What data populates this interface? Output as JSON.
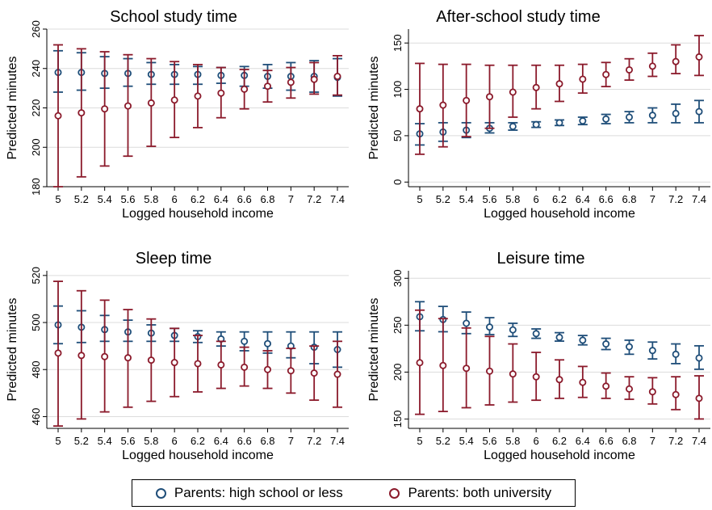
{
  "colors": {
    "series1": "#1f4e79",
    "series2": "#8b1a2b",
    "grid": "#dcdcdc"
  },
  "legend": {
    "items": [
      {
        "label": "Parents: high school or less",
        "color": "#1f4e79"
      },
      {
        "label": "Parents: both university",
        "color": "#8b1a2b"
      }
    ]
  },
  "chart_data": [
    {
      "type": "scatter",
      "title": "School study time",
      "xlabel": "Logged household income",
      "ylabel": "Predicted minutes",
      "x": [
        "5",
        "5.2",
        "5.4",
        "5.6",
        "5.8",
        "6",
        "6.2",
        "6.4",
        "6.6",
        "6.8",
        "7",
        "7.2",
        "7.4"
      ],
      "ylim": [
        180,
        260
      ],
      "yticks": [
        180,
        200,
        220,
        240,
        260
      ],
      "series": [
        {
          "name": "Parents: high school or less",
          "values": [
            238,
            238,
            237.5,
            237.5,
            237,
            237,
            237,
            236.5,
            236.5,
            236,
            236,
            236,
            235.5
          ],
          "lower": [
            228,
            229,
            230,
            231,
            232,
            232,
            232,
            232.5,
            231,
            230,
            229,
            228,
            226
          ],
          "upper": [
            249,
            248,
            246,
            245,
            243,
            242,
            241,
            240.5,
            241,
            242,
            243,
            244,
            245
          ]
        },
        {
          "name": "Parents: both university",
          "values": [
            216,
            217.5,
            219.5,
            221,
            222.5,
            224,
            226,
            227.5,
            229.5,
            231,
            233,
            234.5,
            236
          ],
          "lower": [
            180,
            185,
            190.5,
            195.5,
            200.5,
            205,
            210,
            215,
            219.5,
            223,
            225,
            227,
            226.5
          ],
          "upper": [
            252,
            250,
            248.5,
            247,
            245,
            243.5,
            242,
            240.5,
            239.5,
            239,
            240.5,
            243,
            246.5
          ]
        }
      ]
    },
    {
      "type": "scatter",
      "title": "After-school study time",
      "xlabel": "Logged household income",
      "ylabel": "Predicted minutes",
      "x": [
        "5",
        "5.2",
        "5.4",
        "5.6",
        "5.8",
        "6",
        "6.2",
        "6.4",
        "6.6",
        "6.8",
        "7",
        "7.2",
        "7.4"
      ],
      "ylim": [
        -5,
        165
      ],
      "yticks": [
        0,
        50,
        100,
        150
      ],
      "series": [
        {
          "name": "Parents: high school or less",
          "values": [
            52,
            54,
            56,
            58,
            60,
            62,
            64,
            66,
            68,
            70,
            72,
            74,
            76
          ],
          "lower": [
            40,
            44,
            48,
            53,
            56,
            59,
            61,
            62,
            63,
            64,
            64,
            64,
            64
          ],
          "upper": [
            63,
            64,
            64,
            64,
            64,
            65,
            67,
            70,
            73,
            76,
            80,
            84,
            88
          ]
        },
        {
          "name": "Parents: both university",
          "values": [
            79,
            83,
            88,
            92,
            97,
            102,
            106,
            111,
            116,
            121,
            125,
            130,
            135
          ],
          "lower": [
            30,
            38,
            49,
            58,
            70,
            79,
            87,
            96,
            103,
            110,
            114,
            117,
            115
          ],
          "upper": [
            128,
            127,
            127,
            126,
            126,
            126,
            126,
            127,
            129,
            133,
            139,
            148,
            158
          ]
        }
      ]
    },
    {
      "type": "scatter",
      "title": "Sleep time",
      "xlabel": "Logged household income",
      "ylabel": "Predicted minutes",
      "x": [
        "5",
        "5.2",
        "5.4",
        "5.6",
        "5.8",
        "6",
        "6.2",
        "6.4",
        "6.6",
        "6.8",
        "7",
        "7.2",
        "7.4"
      ],
      "ylim": [
        455,
        522
      ],
      "yticks": [
        460,
        480,
        500,
        520
      ],
      "series": [
        {
          "name": "Parents: high school or less",
          "values": [
            499,
            498,
            497,
            496,
            495.5,
            494.5,
            494,
            493,
            492,
            491,
            490,
            489.5,
            488.5
          ],
          "lower": [
            491,
            491.5,
            492,
            492,
            492,
            492,
            491.5,
            490,
            488,
            487,
            485,
            482.5,
            481
          ],
          "upper": [
            507,
            505,
            503,
            501,
            499,
            497.5,
            496.5,
            496,
            496,
            496,
            496,
            496,
            496
          ]
        },
        {
          "name": "Parents: both university",
          "values": [
            487,
            486,
            485.5,
            485,
            484,
            483,
            482.5,
            482,
            481,
            480,
            479.5,
            478.5,
            478
          ],
          "lower": [
            456,
            459,
            462,
            464,
            466.5,
            468.5,
            470.5,
            472,
            473,
            472,
            470,
            467,
            464
          ],
          "upper": [
            517.5,
            513.5,
            509.5,
            505.5,
            501.5,
            497.5,
            494.5,
            492,
            489.5,
            488,
            489,
            490,
            492
          ]
        }
      ]
    },
    {
      "type": "scatter",
      "title": "Leisure time",
      "xlabel": "Logged household income",
      "ylabel": "Predicted minutes",
      "x": [
        "5",
        "5.2",
        "5.4",
        "5.6",
        "5.8",
        "6",
        "6.2",
        "6.4",
        "6.6",
        "6.8",
        "7",
        "7.2",
        "7.4"
      ],
      "ylim": [
        140,
        308
      ],
      "yticks": [
        150,
        200,
        250,
        300
      ],
      "series": [
        {
          "name": "Parents: high school or less",
          "values": [
            259,
            256,
            252,
            248,
            245,
            241,
            237,
            234,
            230,
            227,
            223,
            219,
            215
          ],
          "lower": [
            244,
            243,
            241,
            240,
            238,
            236,
            233,
            229,
            224,
            219,
            214,
            209,
            203
          ],
          "upper": [
            275,
            270,
            264,
            258,
            252,
            246,
            242,
            239,
            236,
            234,
            232,
            230,
            228
          ]
        },
        {
          "name": "Parents: both university",
          "values": [
            210,
            207,
            204,
            201,
            198,
            195,
            192,
            189,
            185,
            182,
            179,
            176,
            172
          ],
          "lower": [
            155,
            158,
            162,
            165,
            168,
            170,
            172,
            173,
            172,
            171,
            166,
            160,
            150
          ],
          "upper": [
            266,
            257,
            247,
            238,
            230,
            221,
            213,
            206,
            199,
            195,
            194,
            195,
            196
          ]
        }
      ]
    }
  ]
}
